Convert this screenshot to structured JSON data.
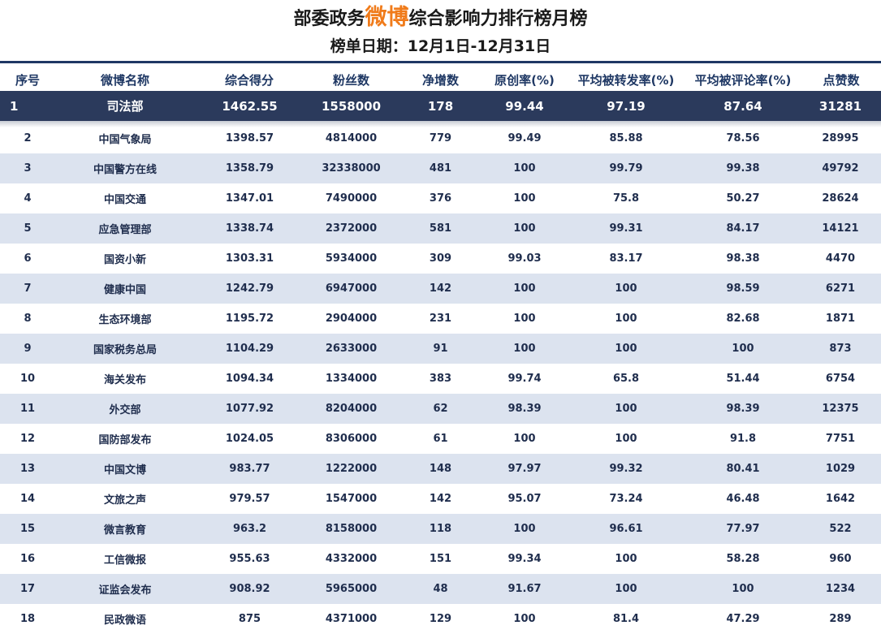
{
  "title": {
    "part1": "部委政务",
    "highlight": "微博",
    "part2": "综合影响力排行榜月榜"
  },
  "subtitle": "榜单日期：12月1日-12月31日",
  "columns": [
    "序号",
    "微博名称",
    "综合得分",
    "粉丝数",
    "净增数",
    "原创率(%)",
    "平均被转发率(%)",
    "平均被评论率(%)",
    "点赞数"
  ],
  "top_row": [
    "1",
    "司法部",
    "1462.55",
    "1558000",
    "178",
    "99.44",
    "97.19",
    "87.64",
    "31281"
  ],
  "rows": [
    [
      "2",
      "中国气象局",
      "1398.57",
      "4814000",
      "779",
      "99.49",
      "85.88",
      "78.56",
      "28995"
    ],
    [
      "3",
      "中国警方在线",
      "1358.79",
      "32338000",
      "481",
      "100",
      "99.79",
      "99.38",
      "49792"
    ],
    [
      "4",
      "中国交通",
      "1347.01",
      "7490000",
      "376",
      "100",
      "75.8",
      "50.27",
      "28624"
    ],
    [
      "5",
      "应急管理部",
      "1338.74",
      "2372000",
      "581",
      "100",
      "99.31",
      "84.17",
      "14121"
    ],
    [
      "6",
      "国资小新",
      "1303.31",
      "5934000",
      "309",
      "99.03",
      "83.17",
      "98.38",
      "4470"
    ],
    [
      "7",
      "健康中国",
      "1242.79",
      "6947000",
      "142",
      "100",
      "100",
      "98.59",
      "6271"
    ],
    [
      "8",
      "生态环境部",
      "1195.72",
      "2904000",
      "231",
      "100",
      "100",
      "82.68",
      "1871"
    ],
    [
      "9",
      "国家税务总局",
      "1104.29",
      "2633000",
      "91",
      "100",
      "100",
      "100",
      "873"
    ],
    [
      "10",
      "海关发布",
      "1094.34",
      "1334000",
      "383",
      "99.74",
      "65.8",
      "51.44",
      "6754"
    ],
    [
      "11",
      "外交部",
      "1077.92",
      "8204000",
      "62",
      "98.39",
      "100",
      "98.39",
      "12375"
    ],
    [
      "12",
      "国防部发布",
      "1024.05",
      "8306000",
      "61",
      "100",
      "100",
      "91.8",
      "7751"
    ],
    [
      "13",
      "中国文博",
      "983.77",
      "1222000",
      "148",
      "97.97",
      "99.32",
      "80.41",
      "1029"
    ],
    [
      "14",
      "文旅之声",
      "979.57",
      "1547000",
      "142",
      "95.07",
      "73.24",
      "46.48",
      "1642"
    ],
    [
      "15",
      "微言教育",
      "963.2",
      "8158000",
      "118",
      "100",
      "96.61",
      "77.97",
      "522"
    ],
    [
      "16",
      "工信微报",
      "955.63",
      "4332000",
      "151",
      "99.34",
      "100",
      "58.28",
      "960"
    ],
    [
      "17",
      "证监会发布",
      "908.92",
      "5965000",
      "48",
      "91.67",
      "100",
      "100",
      "1234"
    ],
    [
      "18",
      "民政微语",
      "875",
      "4371000",
      "129",
      "100",
      "81.4",
      "47.29",
      "289"
    ]
  ],
  "colors": {
    "header_text": "#1f3864",
    "top_row_bg": "#2b3a5c",
    "alt_row_bg": "#dce3ef",
    "title_highlight": "#f07b1a"
  }
}
